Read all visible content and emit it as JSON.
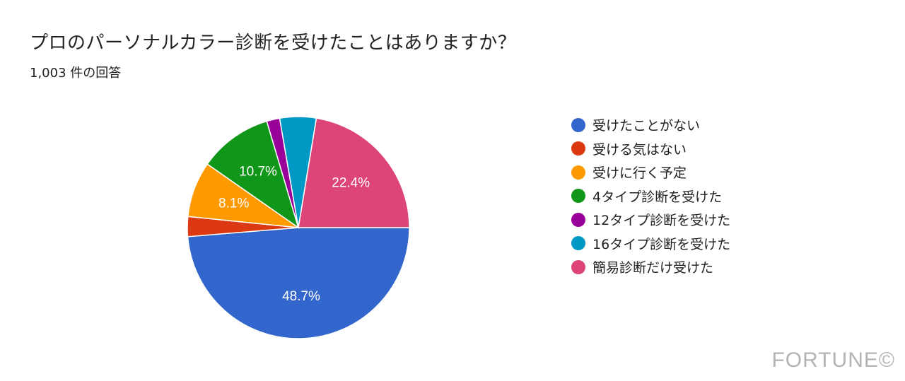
{
  "chart_data": {
    "type": "pie",
    "title": "プロのパーソナルカラー診断を受けたことはありますか？",
    "subtitle": "1,003 件の回答",
    "slices": [
      {
        "label": "受けたことがない",
        "value": 48.7,
        "value_label": "48.7%",
        "color": "#3366cc"
      },
      {
        "label": "受ける気はない",
        "value": 2.9,
        "value_label": "",
        "color": "#dc3912"
      },
      {
        "label": "受けに行く予定",
        "value": 8.1,
        "value_label": "8.1%",
        "color": "#ff9900"
      },
      {
        "label": "4タイプ診断を受けた",
        "value": 10.7,
        "value_label": "10.7%",
        "color": "#109618"
      },
      {
        "label": "12タイプ診断を受けた",
        "value": 1.9,
        "value_label": "",
        "color": "#990099"
      },
      {
        "label": "16タイプ診断を受けた",
        "value": 5.3,
        "value_label": "",
        "color": "#0099c6"
      },
      {
        "label": "簡易診断だけ受けた",
        "value": 22.4,
        "value_label": "22.4%",
        "color": "#dd4477"
      }
    ],
    "legend_position": "right",
    "start": "3 o'clock",
    "direction": "clockwise"
  },
  "watermark": "FORTUNE©"
}
